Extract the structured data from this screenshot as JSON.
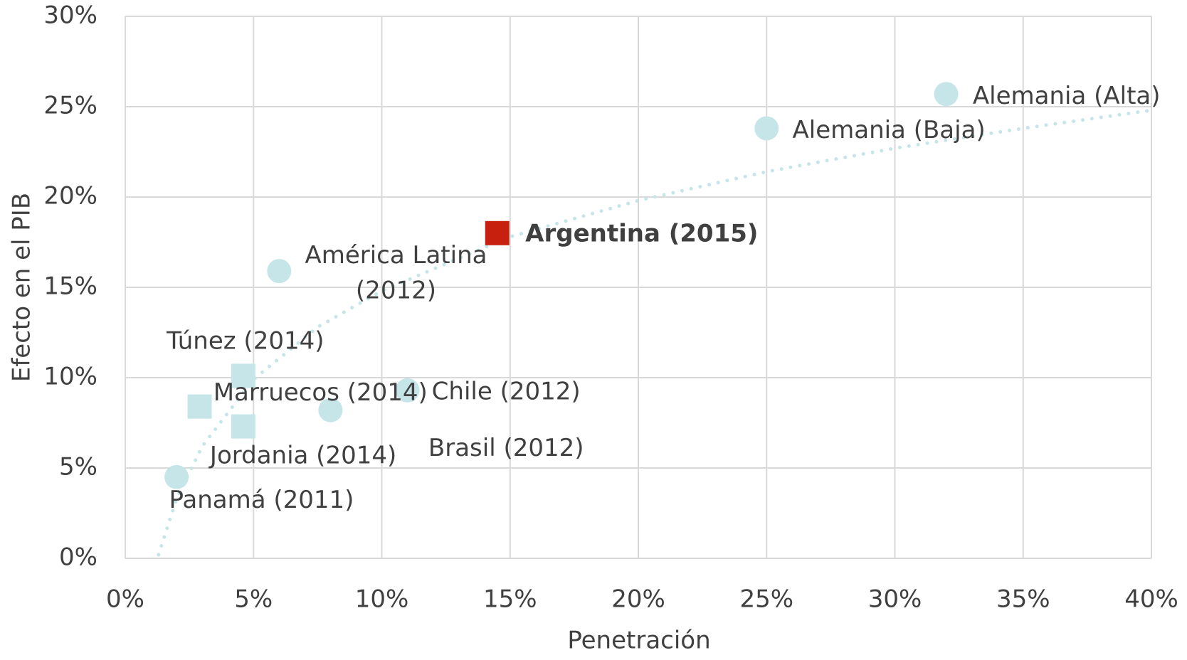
{
  "chart_data": {
    "type": "scatter",
    "x_label": "Penetración",
    "y_label": "Efecto en el PIB",
    "xlim": [
      0,
      40
    ],
    "ylim": [
      0,
      30
    ],
    "xticks": [
      {
        "value": 0,
        "label": "0%"
      },
      {
        "value": 5,
        "label": "5%"
      },
      {
        "value": 10,
        "label": "10%"
      },
      {
        "value": 15,
        "label": "15%"
      },
      {
        "value": 20,
        "label": "20%"
      },
      {
        "value": 25,
        "label": "25%"
      },
      {
        "value": 30,
        "label": "30%"
      },
      {
        "value": 35,
        "label": "35%"
      },
      {
        "value": 40,
        "label": "40%"
      }
    ],
    "yticks": [
      {
        "value": 0,
        "label": "0%"
      },
      {
        "value": 5,
        "label": "5%"
      },
      {
        "value": 10,
        "label": "10%"
      },
      {
        "value": 15,
        "label": "15%"
      },
      {
        "value": 20,
        "label": "20%"
      },
      {
        "value": 25,
        "label": "25%"
      },
      {
        "value": 30,
        "label": "30%"
      }
    ],
    "grid": true,
    "points": [
      {
        "label": "Panamá (2011)",
        "x": 2,
        "y": 4.5,
        "marker": "circle",
        "color": "#c5e5e8"
      },
      {
        "label": "Jordania (2014)",
        "x": 4.6,
        "y": 7.3,
        "marker": "square",
        "color": "#c5e5e8"
      },
      {
        "label": "Marruecos (2014)",
        "x": 2.9,
        "y": 8.4,
        "marker": "square",
        "color": "#c5e5e8"
      },
      {
        "label": "Túnez (2014)",
        "x": 4.6,
        "y": 10.1,
        "marker": "square",
        "color": "#c5e5e8"
      },
      {
        "label": "Brasil (2012)",
        "x": 8,
        "y": 8.2,
        "marker": "circle",
        "color": "#c5e5e8"
      },
      {
        "label": "Chile (2012)",
        "x": 11,
        "y": 9.3,
        "marker": "circle",
        "color": "#c5e5e8"
      },
      {
        "label": "América Latina (2012)",
        "x": 6,
        "y": 15.9,
        "marker": "circle",
        "color": "#c5e5e8"
      },
      {
        "label": "Argentina (2015)",
        "x": 14.5,
        "y": 18,
        "marker": "square",
        "color": "#c8200e"
      },
      {
        "label": "Alemania (Baja)",
        "x": 25,
        "y": 23.8,
        "marker": "circle",
        "color": "#c5e5e8"
      },
      {
        "label": "Alemania (Alta)",
        "x": 32,
        "y": 25.7,
        "marker": "circle",
        "color": "#c5e5e8"
      }
    ],
    "trendline": {
      "color": "#c5e5e8",
      "x": [
        1.3,
        2,
        3,
        5,
        7.5,
        10,
        15,
        20,
        25,
        30,
        35,
        40
      ],
      "values": [
        0.2,
        3.3,
        6.2,
        9.9,
        12.8,
        14.8,
        17.8,
        19.8,
        21.4,
        22.7,
        23.8,
        24.8
      ]
    }
  }
}
